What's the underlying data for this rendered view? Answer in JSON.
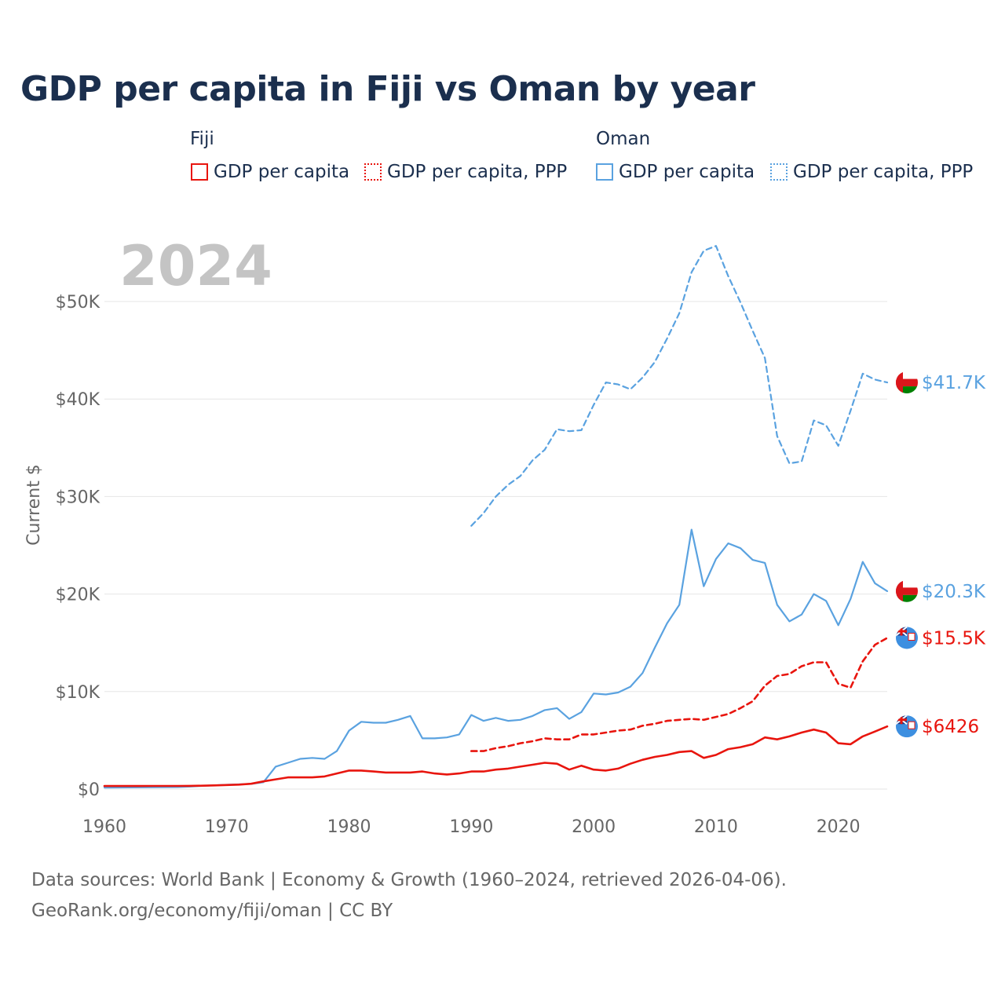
{
  "title": "GDP per capita in Fiji vs Oman by year",
  "year_label": "2024",
  "legend": {
    "groups": [
      {
        "name": "Fiji",
        "color": "#e8150e",
        "items": [
          {
            "label": "GDP per capita",
            "style": "solid"
          },
          {
            "label": "GDP per capita, PPP",
            "style": "dotted"
          }
        ]
      },
      {
        "name": "Oman",
        "color": "#5aa2e0",
        "items": [
          {
            "label": "GDP per capita",
            "style": "solid"
          },
          {
            "label": "GDP per capita, PPP",
            "style": "dotted"
          }
        ]
      }
    ]
  },
  "source_lines": [
    "Data sources: World Bank | Economy & Growth (1960–2024, retrieved 2026-04-06).",
    "GeoRank.org/economy/fiji/oman | CC BY"
  ],
  "chart_data": {
    "type": "line",
    "title": "GDP per capita in Fiji vs Oman by year",
    "ylabel": "Current $",
    "xlim": [
      1960,
      2024
    ],
    "ylim": [
      0,
      55000
    ],
    "xticks": [
      1960,
      1970,
      1980,
      1990,
      2000,
      2010,
      2020
    ],
    "yticks": [
      0,
      10000,
      20000,
      30000,
      40000,
      50000
    ],
    "ytick_labels": [
      "$0",
      "$10K",
      "$20K",
      "$30K",
      "$40K",
      "$50K"
    ],
    "grid": true,
    "series": [
      {
        "name": "Oman GDP per capita, PPP",
        "country": "Oman",
        "color": "#5aa2e0",
        "dash": "dashed",
        "end_label": "$41.7K",
        "start_year": 1990,
        "values": [
          27000,
          28300,
          30000,
          31200,
          32100,
          33700,
          34800,
          36900,
          36700,
          36800,
          39400,
          41700,
          41500,
          41000,
          42200,
          43800,
          46200,
          48800,
          53000,
          55200,
          55700,
          52600,
          49900,
          47000,
          44200,
          36200,
          33400,
          33600,
          37800,
          37300,
          35200,
          38800,
          42600,
          42000,
          41700
        ]
      },
      {
        "name": "Oman GDP per capita",
        "country": "Oman",
        "color": "#5aa2e0",
        "dash": "solid",
        "end_label": "$20.3K",
        "start_year": 1960,
        "values": [
          150,
          160,
          170,
          180,
          190,
          200,
          210,
          260,
          330,
          390,
          440,
          480,
          530,
          700,
          2300,
          2700,
          3100,
          3200,
          3100,
          3900,
          6000,
          6900,
          6800,
          6800,
          7100,
          7500,
          5200,
          5200,
          5300,
          5600,
          7600,
          7000,
          7300,
          7000,
          7100,
          7500,
          8100,
          8300,
          7200,
          7900,
          9800,
          9700,
          9900,
          10500,
          11900,
          14500,
          17000,
          18900,
          26600,
          20800,
          23600,
          25200,
          24700,
          23500,
          23200,
          18900,
          17200,
          17900,
          20000,
          19300,
          16800,
          19500,
          23300,
          21100,
          20300
        ]
      },
      {
        "name": "Fiji GDP per capita, PPP",
        "country": "Fiji",
        "color": "#e8150e",
        "dash": "dashed",
        "end_label": "$15.5K",
        "start_year": 1990,
        "values": [
          3900,
          3900,
          4200,
          4400,
          4700,
          4900,
          5200,
          5100,
          5100,
          5600,
          5600,
          5800,
          6000,
          6100,
          6500,
          6700,
          7000,
          7100,
          7200,
          7100,
          7400,
          7700,
          8300,
          9000,
          10600,
          11600,
          11800,
          12600,
          13000,
          13000,
          10800,
          10400,
          13100,
          14800,
          15500
        ]
      },
      {
        "name": "Fiji GDP per capita",
        "country": "Fiji",
        "color": "#e8150e",
        "dash": "solid",
        "end_label": "$6426",
        "start_year": 1960,
        "values": [
          310,
          310,
          310,
          310,
          320,
          320,
          320,
          330,
          350,
          380,
          420,
          460,
          550,
          790,
          1000,
          1200,
          1200,
          1200,
          1300,
          1600,
          1900,
          1900,
          1800,
          1700,
          1700,
          1700,
          1800,
          1600,
          1500,
          1600,
          1800,
          1800,
          2000,
          2100,
          2300,
          2500,
          2700,
          2600,
          2000,
          2400,
          2000,
          1900,
          2100,
          2600,
          3000,
          3300,
          3500,
          3800,
          3900,
          3200,
          3500,
          4100,
          4300,
          4600,
          5300,
          5100,
          5400,
          5800,
          6100,
          5800,
          4700,
          4600,
          5400,
          5900,
          6426
        ]
      }
    ]
  }
}
